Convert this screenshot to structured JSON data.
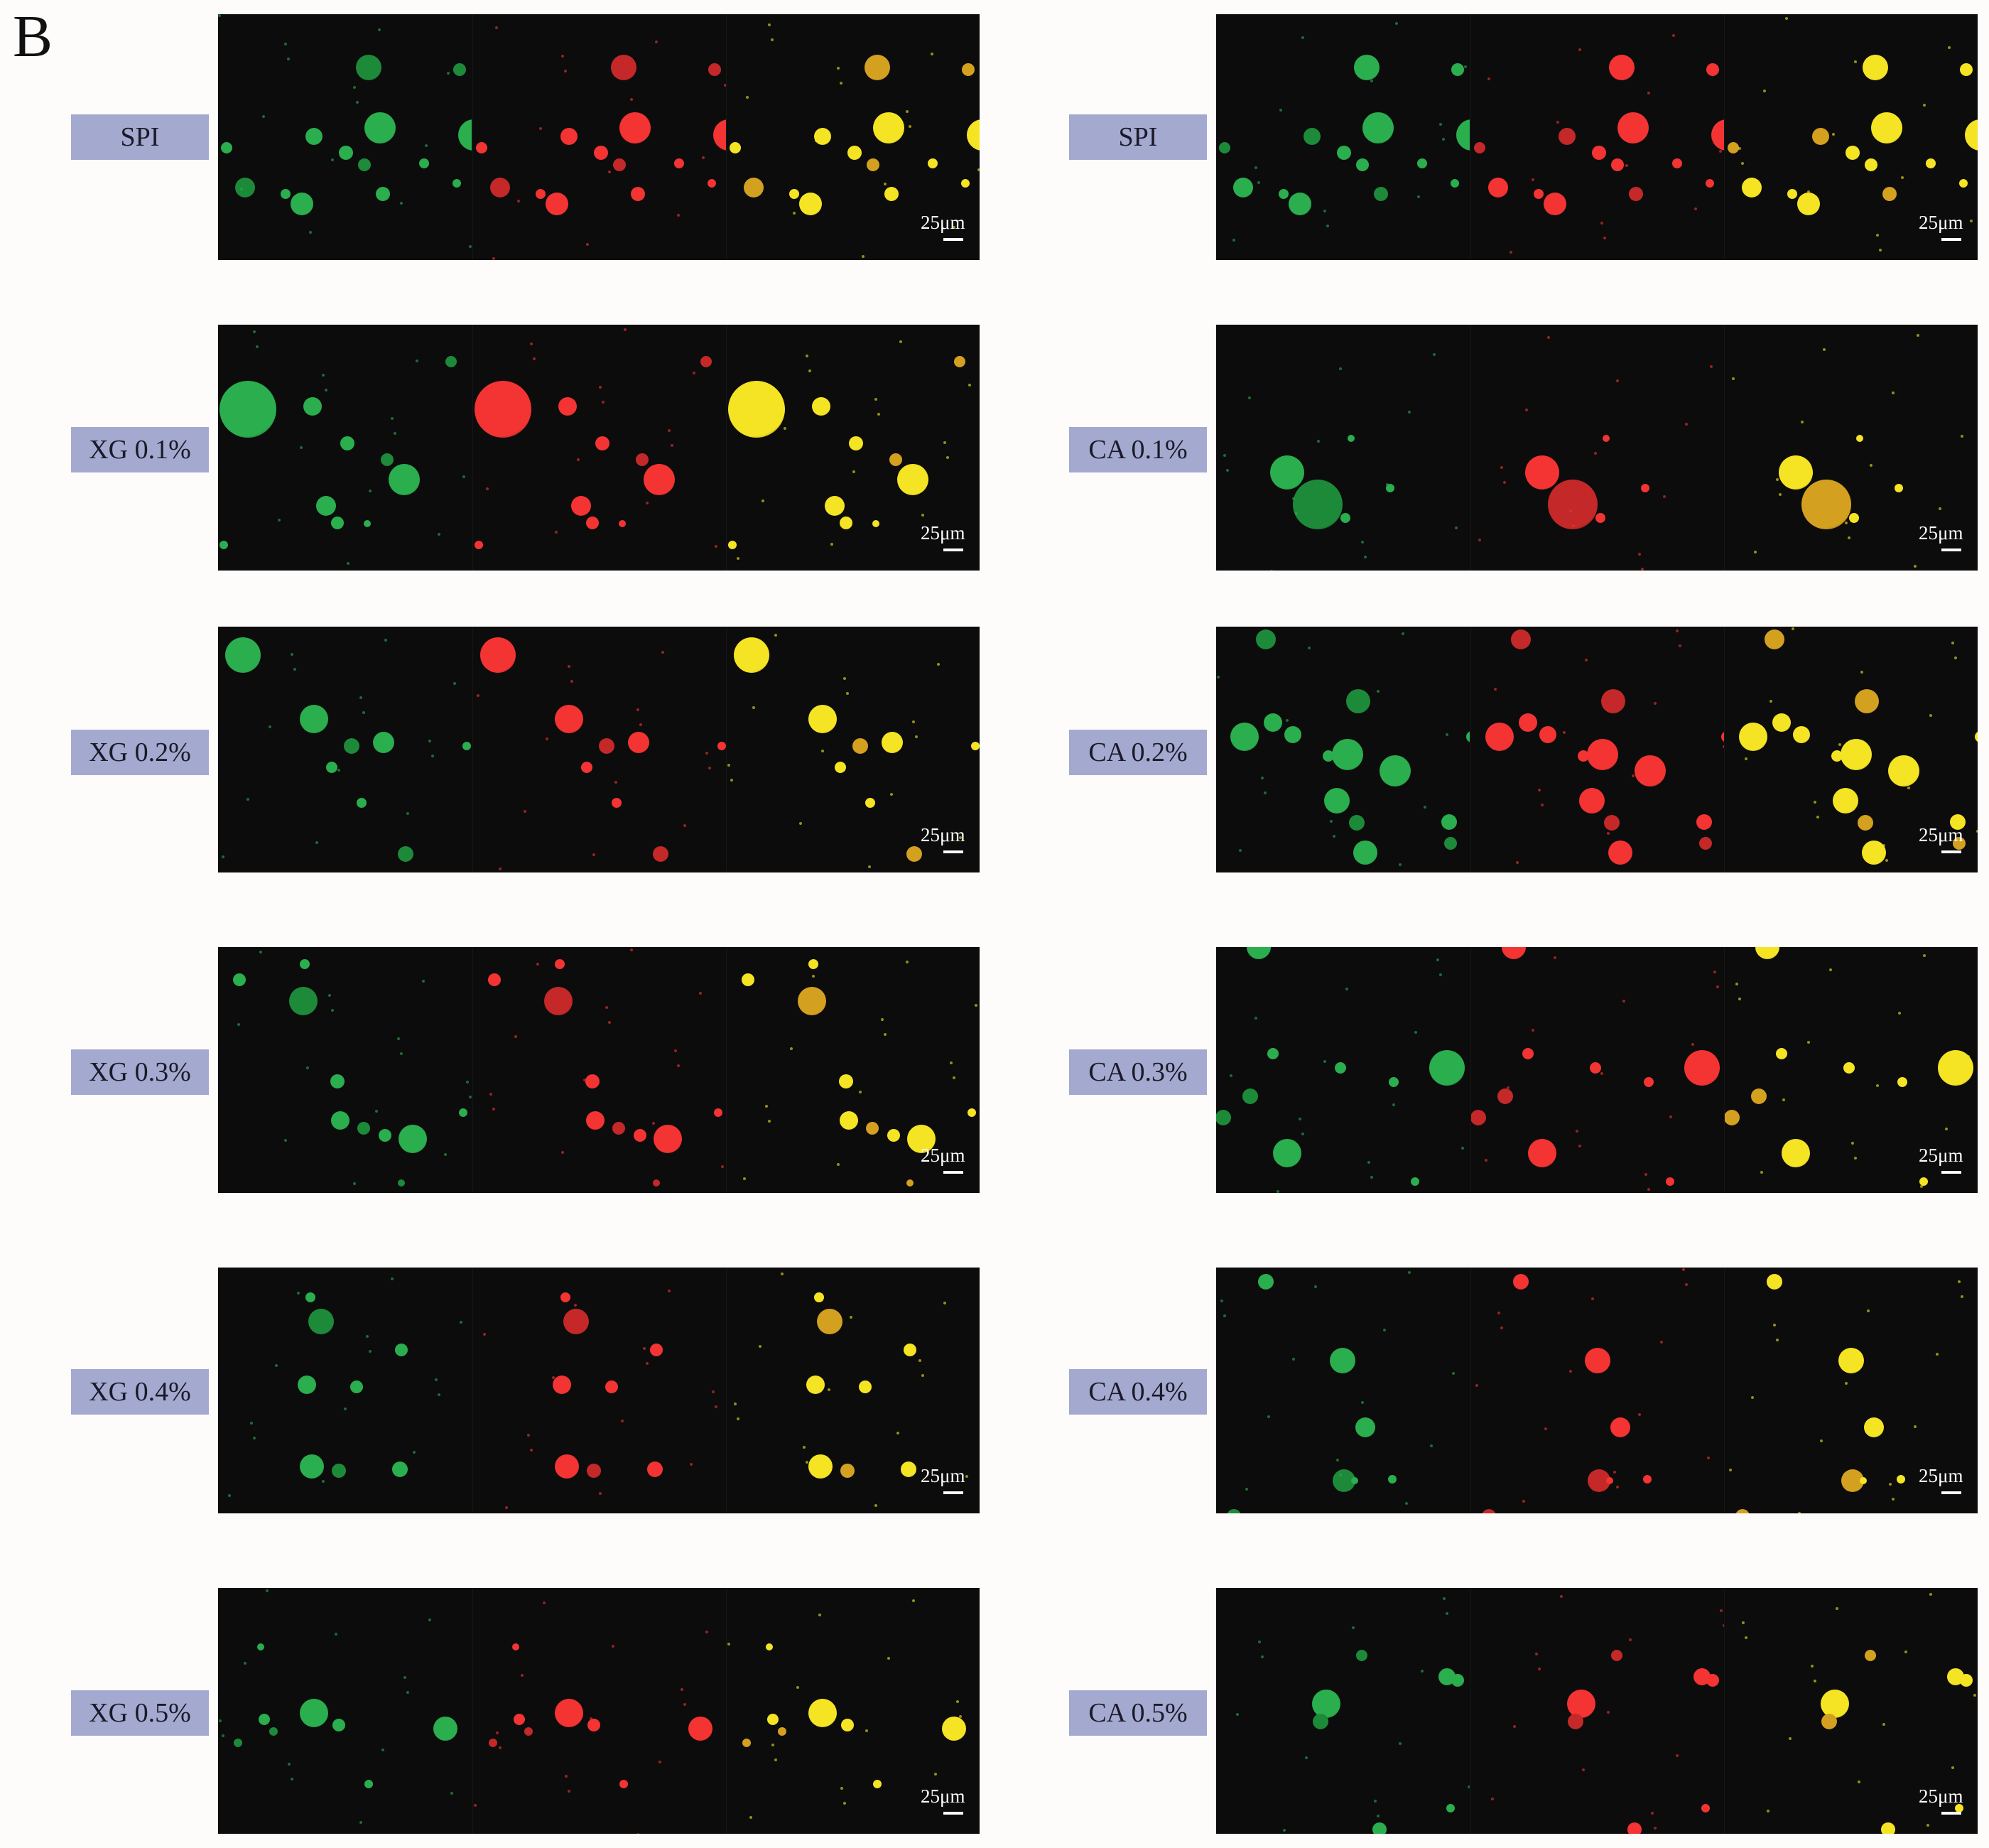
{
  "panel_letter": "B",
  "scale_bar_label": "25μm",
  "channel_colors": [
    "#22a84a",
    "#f22b2b",
    "#f2e21a"
  ],
  "left_column": [
    {
      "label": "SPI"
    },
    {
      "label": "XG 0.1%"
    },
    {
      "label": "XG 0.2%"
    },
    {
      "label": "XG 0.3%"
    },
    {
      "label": "XG 0.4%"
    },
    {
      "label": "XG 0.5%"
    }
  ],
  "right_column": [
    {
      "label": "SPI"
    },
    {
      "label": "CA 0.1%"
    },
    {
      "label": "CA 0.2%"
    },
    {
      "label": "CA 0.3%"
    },
    {
      "label": "CA 0.4%"
    },
    {
      "label": "CA 0.5%"
    }
  ]
}
